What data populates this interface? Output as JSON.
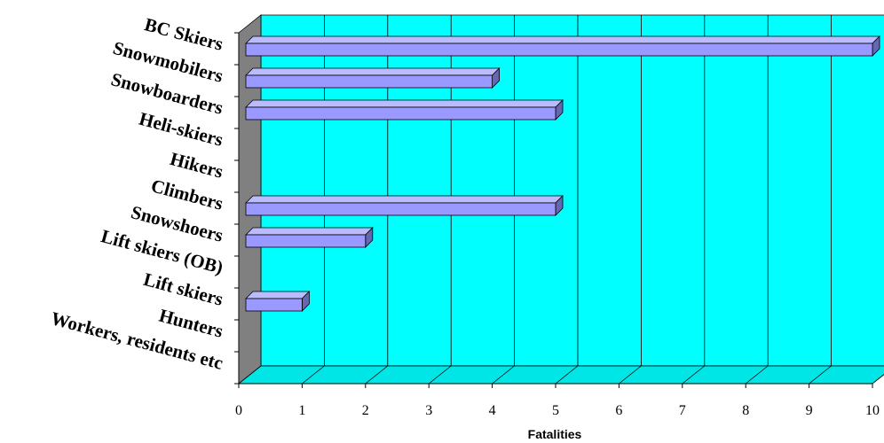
{
  "chart_data": {
    "type": "bar",
    "orientation": "horizontal",
    "three_d": true,
    "categories": [
      "BC Skiers",
      "Snowmobilers",
      "Snowboarders",
      "Heli-skiers",
      "Hikers",
      "Climbers",
      "Snowshoers",
      "Lift skiers (OB)",
      "Lift skiers",
      "Hunters",
      "Workers, residents etc"
    ],
    "values": [
      10,
      4,
      5,
      0,
      0,
      5,
      2,
      0,
      1,
      0,
      0
    ],
    "xlabel": "Fatalities",
    "ylabel": "",
    "title": "",
    "x_ticks": [
      "0",
      "1",
      "2",
      "3",
      "4",
      "5",
      "6",
      "7",
      "8",
      "9",
      "10"
    ],
    "xlim": [
      0,
      10
    ],
    "grid": true,
    "colors": {
      "background": "#00FFFF",
      "bar_front": "#9999FF",
      "bar_top": "#BBBBFF",
      "bar_side": "#6666B3",
      "side_wall": "#808080",
      "floor": "#00E5E5",
      "gridline": "#000000"
    }
  }
}
